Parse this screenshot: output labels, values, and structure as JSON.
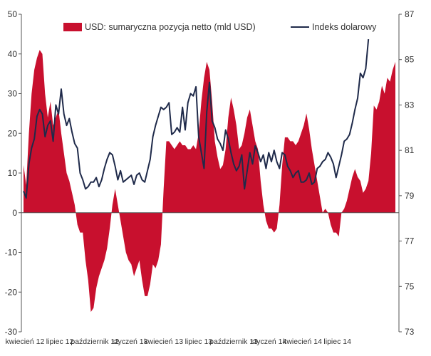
{
  "chart_data": {
    "type": "area+line",
    "legend_position": "top",
    "grid": false,
    "colors": {
      "area": "#C8102E",
      "line": "#1F2A4A",
      "axis": "#555555"
    },
    "left_axis": {
      "ylim": [
        -30,
        50
      ],
      "ticks": [
        50,
        40,
        30,
        20,
        10,
        0,
        -10,
        -20,
        -30
      ]
    },
    "right_axis": {
      "ylim": [
        73,
        87
      ],
      "ticks": [
        87,
        85,
        83,
        81,
        79,
        77,
        75,
        73
      ]
    },
    "x_tick_labels": [
      {
        "label": "kwiecień 12",
        "pos": 0.5
      },
      {
        "label": "lipiec 12",
        "pos": 13.5
      },
      {
        "label": "październik 12",
        "pos": 26.5
      },
      {
        "label": "styczeń 13",
        "pos": 39.5
      },
      {
        "label": "kwiecień 13",
        "pos": 52
      },
      {
        "label": "lipiec 13",
        "pos": 65
      },
      {
        "label": "październik 13",
        "pos": 78
      },
      {
        "label": "styczeń 14",
        "pos": 91
      },
      {
        "label": "kwiecień 14",
        "pos": 103.5
      },
      {
        "label": "lipiec 14",
        "pos": 116.5
      }
    ],
    "series": [
      {
        "name": "USD: sumaryczna pozycja netto (mld USD)",
        "kind": "area",
        "axis": "left",
        "values": [
          12,
          7,
          20,
          30,
          36,
          39,
          41,
          40,
          30,
          24,
          28,
          22,
          24,
          26,
          20,
          15,
          10,
          8,
          5,
          2,
          -3,
          -5,
          -5,
          -12,
          -17,
          -25,
          -24,
          -19,
          -16,
          -14,
          -12,
          -9,
          -4,
          2,
          6,
          2,
          -2,
          -6,
          -10,
          -12,
          -13,
          -16,
          -14,
          -12,
          -17,
          -21,
          -21,
          -18,
          -13,
          -14,
          -12,
          -8,
          6,
          18,
          18,
          17,
          16,
          17,
          18,
          17,
          17,
          16,
          16,
          17,
          16,
          20,
          28,
          34,
          38,
          36,
          28,
          18,
          14,
          11,
          12,
          16,
          24,
          29,
          26,
          22,
          16,
          17,
          20,
          24,
          26,
          22,
          18,
          16,
          8,
          2,
          -2,
          -4,
          -4,
          -5,
          -4,
          2,
          12,
          19,
          19,
          18,
          18,
          17,
          18,
          20,
          22,
          25,
          21,
          16,
          12,
          8,
          4,
          0,
          1,
          0,
          -3,
          -5,
          -5,
          -6,
          0,
          1,
          3,
          6,
          9,
          11,
          9,
          8,
          5,
          6,
          8,
          15,
          27,
          26,
          28,
          32,
          30,
          34,
          33,
          36,
          38
        ]
      },
      {
        "name": "Indeks dolarowy",
        "kind": "line",
        "axis": "right",
        "values": [
          79.2,
          78.9,
          80.4,
          81.1,
          81.5,
          82.5,
          82.8,
          82.6,
          81.6,
          82.1,
          82.3,
          81.4,
          83.0,
          82.6,
          83.7,
          82.6,
          82.1,
          82.4,
          81.8,
          81.3,
          81.1,
          80.0,
          79.7,
          79.3,
          79.4,
          79.6,
          79.6,
          79.8,
          79.4,
          79.7,
          80.2,
          80.6,
          80.9,
          80.8,
          80.3,
          79.7,
          80.1,
          79.6,
          79.7,
          79.8,
          79.9,
          79.5,
          79.9,
          80.0,
          79.7,
          79.6,
          80.1,
          80.6,
          81.6,
          82.1,
          82.5,
          82.9,
          82.8,
          82.9,
          83.1,
          81.7,
          81.8,
          82.0,
          81.8,
          82.9,
          81.9,
          83.1,
          83.5,
          83.4,
          83.8,
          81.6,
          80.9,
          80.2,
          82.7,
          84.0,
          82.3,
          82.0,
          81.5,
          81.3,
          81.0,
          81.9,
          81.5,
          80.9,
          80.4,
          80.1,
          80.3,
          80.8,
          79.3,
          80.1,
          80.9,
          80.4,
          81.2,
          80.9,
          80.5,
          80.8,
          80.2,
          80.9,
          80.5,
          81.0,
          80.5,
          80.2,
          80.9,
          80.8,
          80.3,
          80.1,
          79.8,
          80.0,
          80.1,
          79.6,
          79.6,
          79.7,
          80.0,
          79.5,
          79.6,
          80.2,
          80.3,
          80.5,
          80.6,
          80.9,
          80.7,
          80.4,
          79.8,
          80.3,
          80.8,
          81.4,
          81.5,
          81.7,
          82.2,
          82.8,
          83.3,
          84.4,
          84.2,
          84.6,
          85.9
        ]
      }
    ]
  }
}
